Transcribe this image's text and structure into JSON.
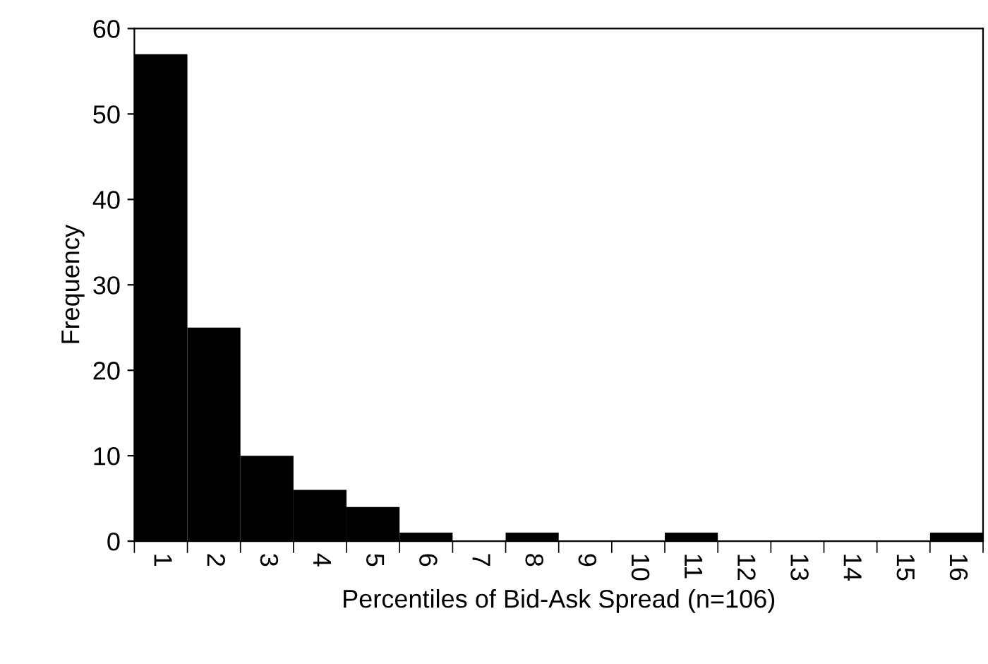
{
  "chart_data": {
    "type": "bar",
    "xlabel": "Percentiles of Bid-Ask Spread (n=106)",
    "ylabel": "Frequency",
    "categories": [
      "1",
      "2",
      "3",
      "4",
      "5",
      "6",
      "7",
      "8",
      "9",
      "10",
      "11",
      "12",
      "13",
      "14",
      "15",
      "16"
    ],
    "values": [
      57,
      25,
      10,
      6,
      4,
      1,
      0,
      1,
      0,
      0,
      1,
      0,
      0,
      0,
      0,
      1
    ],
    "color": "#000000",
    "ylim": [
      0,
      60
    ],
    "yticks": [
      0,
      10,
      20,
      30,
      40,
      50,
      60
    ],
    "grid": false,
    "legend": false
  }
}
